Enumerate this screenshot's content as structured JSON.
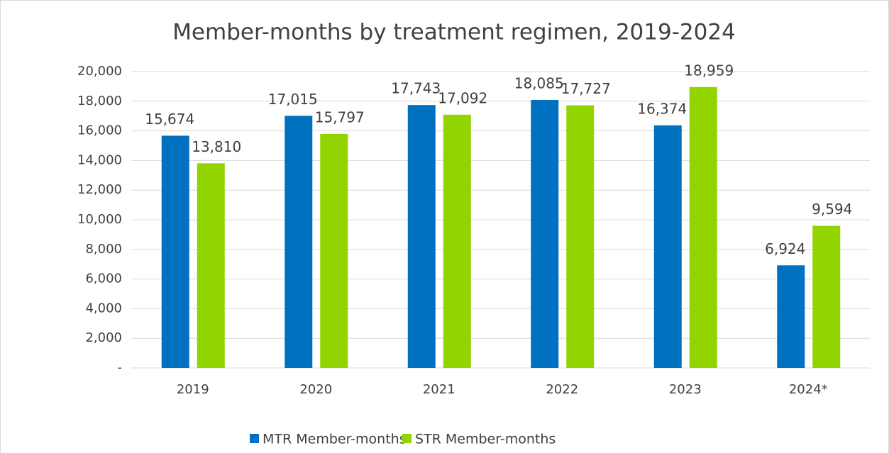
{
  "chart_data": {
    "type": "bar",
    "title": "Member-months by treatment regimen, 2019-2024",
    "categories": [
      "2019",
      "2020",
      "2021",
      "2022",
      "2023",
      "2024*"
    ],
    "series": [
      {
        "name": "MTR Member-months",
        "color": "#0070c0",
        "values": [
          15674,
          17015,
          17743,
          18085,
          16374,
          6924
        ],
        "value_labels": [
          "15,674",
          "17,015",
          "17,743",
          "18,085",
          "16,374",
          "6,924"
        ]
      },
      {
        "name": "STR Member-months",
        "color": "#92d400",
        "values": [
          13810,
          15797,
          17092,
          17727,
          18959,
          9594
        ],
        "value_labels": [
          "13,810",
          "15,797",
          "17,092",
          "17,727",
          "18,959",
          "9,594"
        ]
      }
    ],
    "ylim": [
      0,
      20000
    ],
    "yticks": [
      {
        "value": 0,
        "label": "-"
      },
      {
        "value": 2000,
        "label": "2,000"
      },
      {
        "value": 4000,
        "label": "4,000"
      },
      {
        "value": 6000,
        "label": "6,000"
      },
      {
        "value": 8000,
        "label": "8,000"
      },
      {
        "value": 10000,
        "label": "10,000"
      },
      {
        "value": 12000,
        "label": "12,000"
      },
      {
        "value": 14000,
        "label": "14,000"
      },
      {
        "value": 16000,
        "label": "16,000"
      },
      {
        "value": 18000,
        "label": "18,000"
      },
      {
        "value": 20000,
        "label": "20,000"
      }
    ],
    "grid": true,
    "legend": "bottom"
  }
}
